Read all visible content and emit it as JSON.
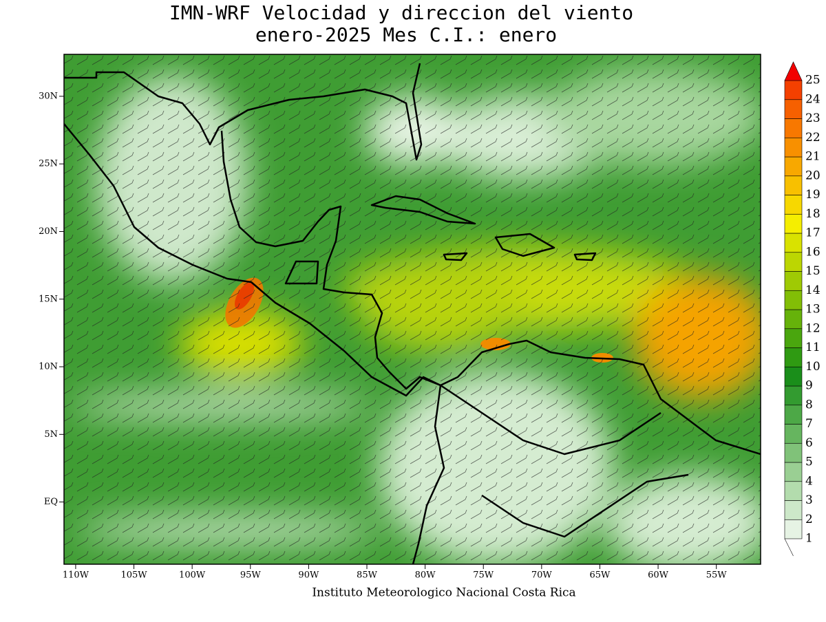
{
  "header": {
    "title_line1": "IMN-WRF Velocidad y direccion del viento",
    "title_line2": "enero-2025 Mes C.I.: enero"
  },
  "map": {
    "lon_ticks": [
      {
        "value": -110,
        "label": "110W"
      },
      {
        "value": -105,
        "label": "105W"
      },
      {
        "value": -100,
        "label": "100W"
      },
      {
        "value": -95,
        "label": "95W"
      },
      {
        "value": -90,
        "label": "90W"
      },
      {
        "value": -85,
        "label": "85W"
      },
      {
        "value": -80,
        "label": "80W"
      },
      {
        "value": -75,
        "label": "75W"
      },
      {
        "value": -70,
        "label": "70W"
      },
      {
        "value": -65,
        "label": "65W"
      },
      {
        "value": -60,
        "label": "60W"
      },
      {
        "value": -55,
        "label": "55W"
      }
    ],
    "lat_ticks": [
      {
        "value": 30,
        "label": "30N"
      },
      {
        "value": 25,
        "label": "25N"
      },
      {
        "value": 20,
        "label": "20N"
      },
      {
        "value": 15,
        "label": "15N"
      },
      {
        "value": 10,
        "label": "10N"
      },
      {
        "value": 5,
        "label": "5N"
      },
      {
        "value": 0,
        "label": "EQ"
      }
    ]
  },
  "colorbar": {
    "levels": [
      1,
      2,
      3,
      4,
      5,
      6,
      7,
      8,
      9,
      10,
      11,
      12,
      13,
      14,
      15,
      16,
      17,
      18,
      19,
      20,
      21,
      22,
      23,
      24,
      25
    ],
    "colors": [
      "#e6f3e4",
      "#cde8c9",
      "#b3dcad",
      "#9acf93",
      "#80c279",
      "#66b55f",
      "#4da847",
      "#339b30",
      "#1a8e1a",
      "#2f9a12",
      "#4aa60e",
      "#66b20a",
      "#82be06",
      "#9fca04",
      "#bcd602",
      "#d9e200",
      "#f5ee00",
      "#f7d800",
      "#f8c000",
      "#f8a800",
      "#f89000",
      "#f87800",
      "#f66000",
      "#f44000"
    ],
    "extend_color": "#f20000"
  },
  "footer": {
    "credit": "Instituto Meteorologico Nacional Costa Rica"
  }
}
